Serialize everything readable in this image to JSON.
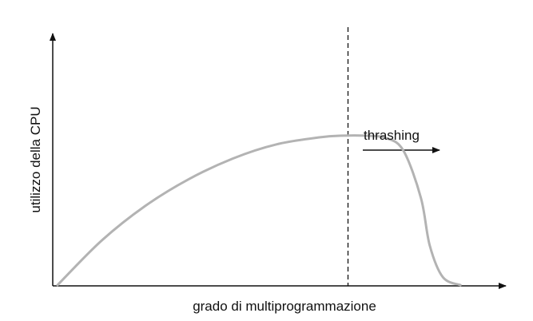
{
  "diagram": {
    "xlabel": "grado di multiprogrammazione",
    "ylabel": "utilizzo della CPU",
    "annotation": "thrashing",
    "curve_color": "#b3b3b3",
    "axis_color": "#111111"
  },
  "chart_data": {
    "type": "line",
    "title": "",
    "xlabel": "grado di multiprogrammazione",
    "ylabel": "utilizzo della CPU",
    "annotations": [
      "thrashing"
    ],
    "series": [
      {
        "x": [
          0,
          0.1,
          0.2,
          0.3,
          0.4,
          0.5,
          0.6,
          0.65,
          0.7,
          0.75,
          0.79,
          0.83,
          0.85,
          0.88,
          0.92
        ],
        "values": [
          0,
          0.28,
          0.5,
          0.67,
          0.8,
          0.89,
          0.935,
          0.945,
          0.945,
          0.93,
          0.85,
          0.55,
          0.25,
          0.05,
          0
        ]
      }
    ],
    "thrashing_threshold_x": 0.805,
    "xlim": [
      0,
      1
    ],
    "ylim": [
      0,
      1
    ],
    "grid": false,
    "legend": "none"
  }
}
